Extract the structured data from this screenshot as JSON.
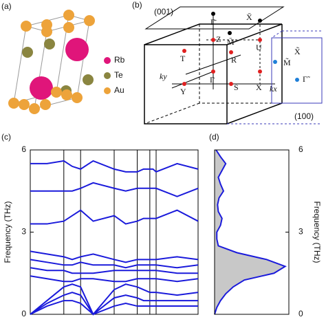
{
  "panels": {
    "a": "(a)",
    "b": "(b)",
    "c": "(c)",
    "d": "(d)"
  },
  "crystal": {
    "legend": [
      {
        "label": "Rb",
        "color": "#e0157a"
      },
      {
        "label": "Te",
        "color": "#8a8540"
      },
      {
        "label": "Au",
        "color": "#eda33a"
      }
    ]
  },
  "bz": {
    "plane_001": "(001)",
    "plane_100": "(100)",
    "gamma_bar": "Γ̄",
    "x_bar": "X̄",
    "m_bar": "M̄",
    "z": "Z",
    "u": "U",
    "t": "T",
    "r": "R",
    "gamma": "Γ",
    "y": "Y",
    "s": "S",
    "x": "X",
    "ky": "ky",
    "kx": "kx",
    "m_tilde": "M̃",
    "x_tilde": "X̃",
    "gamma_tilde": "Γ̃"
  },
  "chart_data": [
    {
      "type": "line",
      "ylabel": "Frequency (THz)",
      "xlim": [
        0,
        4
      ],
      "xticks": [
        0,
        0.8,
        1.2,
        2.0,
        2.55,
        2.85,
        3.0,
        4
      ],
      "ylim": [
        0,
        6
      ],
      "yticks": [
        0,
        3,
        6
      ],
      "x": [
        0,
        0.4,
        0.8,
        1.0,
        1.2,
        1.5,
        2.0,
        2.275,
        2.55,
        2.7,
        2.85,
        2.925,
        3.0,
        3.5,
        4
      ],
      "series": [
        {
          "color": "#1a1adb",
          "values": [
            5.5,
            5.5,
            5.6,
            5.4,
            5.3,
            5.6,
            5.3,
            5.2,
            5.2,
            5.3,
            5.3,
            5.3,
            5.2,
            5.5,
            5.3
          ]
        },
        {
          "color": "#1a1adb",
          "values": [
            4.5,
            4.5,
            4.5,
            4.5,
            4.6,
            4.8,
            4.6,
            4.5,
            4.6,
            4.6,
            4.6,
            4.6,
            4.6,
            4.3,
            4.6
          ]
        },
        {
          "color": "#1a1adb",
          "values": [
            3.3,
            3.3,
            3.4,
            3.6,
            3.8,
            3.4,
            3.6,
            3.3,
            3.4,
            3.5,
            3.5,
            3.5,
            3.5,
            3.8,
            3.4
          ]
        },
        {
          "color": "#1a1adb",
          "values": [
            2.3,
            2.2,
            2.1,
            2.0,
            2.1,
            2.2,
            2.0,
            1.9,
            2.0,
            2.0,
            2.0,
            2.0,
            2.0,
            2.1,
            2.0
          ]
        },
        {
          "color": "#1a1adb",
          "values": [
            2.0,
            1.9,
            1.8,
            1.8,
            1.9,
            1.8,
            1.8,
            1.7,
            1.8,
            1.8,
            1.8,
            1.8,
            1.8,
            1.7,
            1.8
          ]
        },
        {
          "color": "#1a1adb",
          "values": [
            1.7,
            1.6,
            1.6,
            1.5,
            1.5,
            1.5,
            1.6,
            1.6,
            1.6,
            1.6,
            1.6,
            1.6,
            1.6,
            1.5,
            1.5
          ]
        },
        {
          "color": "#1a1adb",
          "values": [
            1.4,
            1.3,
            1.2,
            1.2,
            1.3,
            1.3,
            1.2,
            1.2,
            1.3,
            1.3,
            1.3,
            1.3,
            1.3,
            1.2,
            1.3
          ]
        },
        {
          "color": "#1a1adb",
          "values": [
            0,
            0.5,
            1.0,
            1.1,
            1.0,
            0,
            0.9,
            1.1,
            1.0,
            0.9,
            0.8,
            0.8,
            0.8,
            0.7,
            0.8
          ]
        },
        {
          "color": "#1a1adb",
          "values": [
            0,
            0.4,
            0.7,
            0.8,
            0.7,
            0,
            0.6,
            0.7,
            0.6,
            0.5,
            0.5,
            0.5,
            0.5,
            0.5,
            0.5
          ]
        },
        {
          "color": "#1a1adb",
          "values": [
            0,
            0.3,
            0.5,
            0.5,
            0.4,
            0,
            0.3,
            0.4,
            0.3,
            0.3,
            0.3,
            0.3,
            0.3,
            0.3,
            0.3
          ]
        }
      ]
    },
    {
      "type": "area",
      "ylabel": "Frequency (THz)",
      "xlim": [
        0,
        1
      ],
      "ylim": [
        0,
        6
      ],
      "yticks": [
        0,
        3,
        6
      ],
      "color": "#1a1adb",
      "fill": "#c8c8c8",
      "y": [
        0,
        0.25,
        0.5,
        0.75,
        1,
        1.25,
        1.5,
        1.75,
        2,
        2.25,
        2.5,
        2.75,
        3,
        3.25,
        3.5,
        3.75,
        4,
        4.25,
        4.5,
        4.75,
        5,
        5.25,
        5.5,
        5.75,
        6
      ],
      "values": [
        0,
        0.03,
        0.08,
        0.15,
        0.25,
        0.4,
        0.8,
        0.95,
        0.7,
        0.3,
        0.05,
        0.03,
        0.03,
        0.08,
        0.1,
        0.05,
        0.04,
        0.06,
        0.12,
        0.08,
        0.05,
        0.1,
        0.15,
        0.08,
        0.02
      ]
    }
  ]
}
